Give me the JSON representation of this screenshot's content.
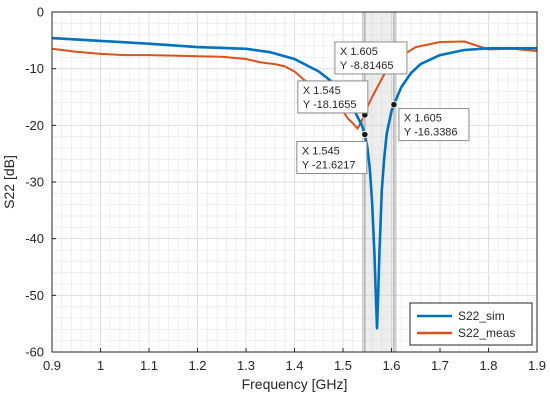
{
  "chart_data": {
    "type": "line",
    "title": "",
    "xlabel": "Frequency [GHz]",
    "ylabel": "S22 [dB]",
    "xlim": [
      0.9,
      1.9
    ],
    "ylim": [
      -60,
      0
    ],
    "x_ticks": [
      "0.9",
      "1",
      "1.1",
      "1.2",
      "1.3",
      "1.4",
      "1.5",
      "1.6",
      "1.7",
      "1.8",
      "1.9"
    ],
    "y_ticks": [
      "0",
      "-10",
      "-20",
      "-30",
      "-40",
      "-50",
      "-60"
    ],
    "grid": "major and minor",
    "legend_position": "bottom-right",
    "highlight_band": [
      1.545,
      1.605
    ],
    "series": [
      {
        "name": "S22_sim",
        "color": "#0072BD",
        "x": [
          0.9,
          1.0,
          1.1,
          1.2,
          1.3,
          1.35,
          1.4,
          1.45,
          1.48,
          1.5,
          1.52,
          1.54,
          1.545,
          1.55,
          1.555,
          1.56,
          1.565,
          1.568,
          1.57,
          1.572,
          1.575,
          1.58,
          1.585,
          1.59,
          1.6,
          1.605,
          1.62,
          1.64,
          1.66,
          1.7,
          1.75,
          1.8,
          1.85,
          1.9
        ],
        "y": [
          -4.6,
          -5.1,
          -5.6,
          -6.2,
          -6.5,
          -7.1,
          -8.3,
          -10.5,
          -12.5,
          -14.2,
          -16.8,
          -20.2,
          -21.6,
          -23.8,
          -27.5,
          -33.5,
          -43.0,
          -51.0,
          -55.8,
          -51.5,
          -42.5,
          -31.5,
          -25.8,
          -21.5,
          -17.5,
          -16.34,
          -13.3,
          -10.8,
          -9.2,
          -7.6,
          -6.7,
          -6.4,
          -6.4,
          -6.4
        ]
      },
      {
        "name": "S22_meas",
        "color": "#D95319",
        "x": [
          0.9,
          0.95,
          1.0,
          1.05,
          1.1,
          1.15,
          1.2,
          1.25,
          1.3,
          1.33,
          1.36,
          1.38,
          1.4,
          1.42,
          1.45,
          1.48,
          1.5,
          1.51,
          1.52,
          1.53,
          1.54,
          1.545,
          1.55,
          1.56,
          1.57,
          1.58,
          1.59,
          1.6,
          1.605,
          1.62,
          1.65,
          1.7,
          1.75,
          1.8,
          1.85,
          1.9
        ],
        "y": [
          -6.5,
          -7.0,
          -7.4,
          -7.6,
          -7.6,
          -7.7,
          -7.8,
          -7.9,
          -8.3,
          -8.9,
          -9.2,
          -9.6,
          -10.5,
          -12.0,
          -13.8,
          -15.8,
          -17.5,
          -18.8,
          -19.6,
          -20.6,
          -18.9,
          -18.17,
          -16.8,
          -15.0,
          -13.4,
          -11.8,
          -10.2,
          -9.2,
          -8.81,
          -7.8,
          -6.2,
          -5.3,
          -5.2,
          -6.6,
          -6.5,
          -6.9
        ]
      }
    ],
    "datatips": [
      {
        "series": "S22_meas",
        "x_text": "X 1.605",
        "y_text": "Y -8.81465",
        "x": 1.605,
        "y": -8.81465
      },
      {
        "series": "S22_meas",
        "x_text": "X 1.545",
        "y_text": "Y -18.1655",
        "x": 1.545,
        "y": -18.1655
      },
      {
        "series": "S22_sim",
        "x_text": "X 1.605",
        "y_text": "Y -16.3386",
        "x": 1.605,
        "y": -16.3386
      },
      {
        "series": "S22_sim",
        "x_text": "X 1.545",
        "y_text": "Y -21.6217",
        "x": 1.545,
        "y": -21.6217
      }
    ]
  }
}
